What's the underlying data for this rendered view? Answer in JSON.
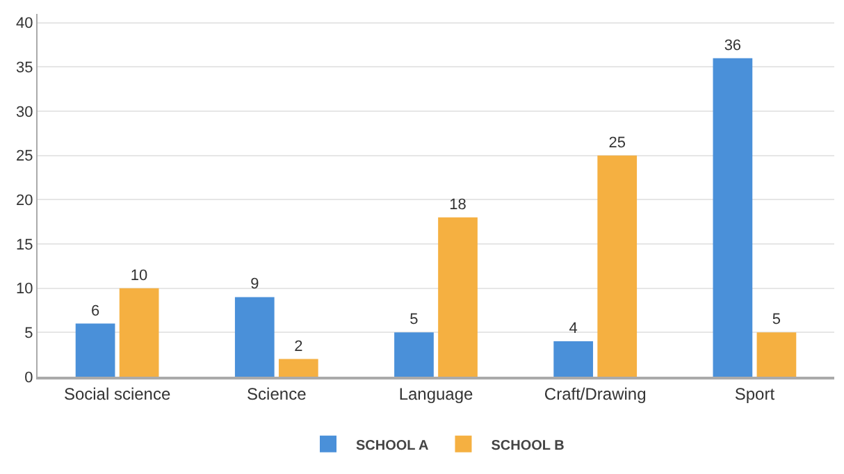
{
  "chart_data": {
    "type": "bar",
    "categories": [
      "Social science",
      "Science",
      "Language",
      "Craft/Drawing",
      "Sport"
    ],
    "series": [
      {
        "name": "SCHOOL A",
        "color": "#4a90d9",
        "values": [
          6,
          9,
          5,
          4,
          36
        ]
      },
      {
        "name": "SCHOOL B",
        "color": "#f5b041",
        "values": [
          10,
          2,
          18,
          25,
          5
        ]
      }
    ],
    "ylim": [
      0,
      41
    ],
    "yticks": [
      0,
      5,
      10,
      15,
      20,
      25,
      30,
      35,
      40
    ],
    "grid": "y",
    "legend": "bottom",
    "data_labels": true
  }
}
